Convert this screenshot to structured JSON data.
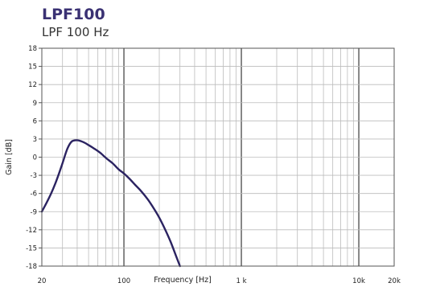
{
  "chart_data": {
    "type": "line",
    "title": "LPF100",
    "subtitle": "LPF 100 Hz",
    "xlabel": "Frequency [Hz]",
    "ylabel": "Gain [dB]",
    "xscale": "log",
    "xlim": [
      20,
      20000
    ],
    "ylim": [
      -18,
      18
    ],
    "x_ticks": [
      20,
      100,
      1000,
      10000,
      20000
    ],
    "x_tick_labels": [
      "20",
      "100",
      "1 k",
      "10k",
      "20k"
    ],
    "y_ticks": [
      18,
      15,
      12,
      9,
      6,
      3,
      0,
      -3,
      -6,
      -9,
      -12,
      -15,
      -18
    ],
    "y_tick_labels": [
      "18",
      "15",
      "12",
      "9",
      "6",
      "3",
      "0",
      "-3",
      "-6",
      "-9",
      "-12",
      "-15",
      "-18"
    ],
    "grid": true,
    "colors": {
      "title": "#3a3173",
      "line": "#2b2361",
      "grid_minor": "#bcbcbc",
      "grid_major": "#555555"
    },
    "series": [
      {
        "x": [
          20,
          22,
          24,
          26,
          28,
          30,
          33,
          36,
          40,
          45,
          50,
          56,
          63,
          71,
          80,
          90,
          100,
          112,
          125,
          140,
          160,
          180,
          200,
          225,
          250,
          280,
          300
        ],
        "y": [
          -9,
          -7.5,
          -6,
          -4.4,
          -2.7,
          -1,
          1.4,
          2.6,
          2.8,
          2.5,
          2,
          1.4,
          0.7,
          -0.2,
          -1,
          -2,
          -2.7,
          -3.6,
          -4.6,
          -5.6,
          -7,
          -8.5,
          -10,
          -12,
          -14,
          -16.5,
          -18
        ]
      }
    ]
  }
}
